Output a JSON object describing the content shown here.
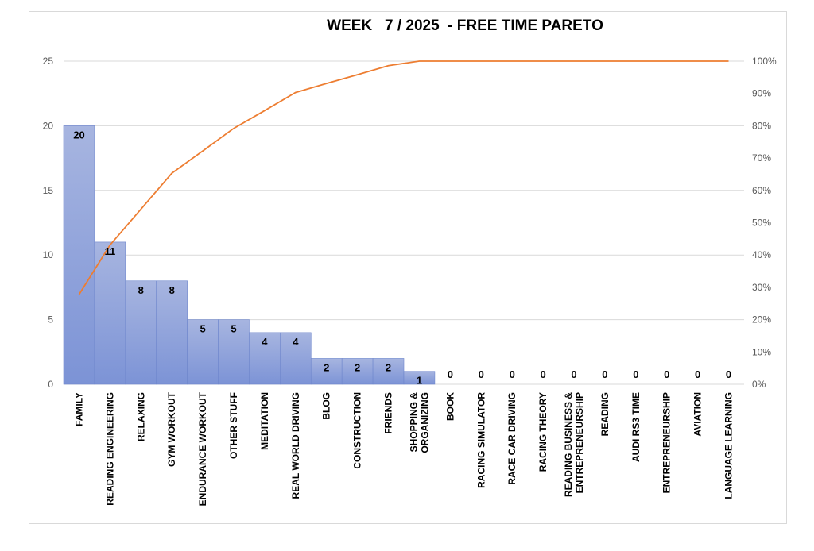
{
  "chart_data": {
    "type": "bar",
    "title": "WEEK   7 / 2025  - FREE TIME PARETO",
    "categories": [
      [
        "FAMILY"
      ],
      [
        "READING ENGINEERING"
      ],
      [
        "RELAXING"
      ],
      [
        "GYM WORKOUT"
      ],
      [
        "ENDURANCE WORKOUT"
      ],
      [
        "OTHER STUFF"
      ],
      [
        "MEDITATION"
      ],
      [
        "REAL WORLD DRIVING"
      ],
      [
        "BLOG"
      ],
      [
        "CONSTRUCTION"
      ],
      [
        "FRIENDS"
      ],
      [
        "SHOPPING &",
        "ORGANIZING"
      ],
      [
        "BOOK"
      ],
      [
        "RACING SIMULATOR"
      ],
      [
        "RACE CAR DRIVING"
      ],
      [
        "RACING THEORY"
      ],
      [
        "READING BUSINESS &",
        "ENTREPRENEURSHIP"
      ],
      [
        "READING"
      ],
      [
        "AUDI RS3 TIME"
      ],
      [
        "ENTREPRENEURSHIP"
      ],
      [
        "AVIATION"
      ],
      [
        "LANGUAGE LEARNING"
      ]
    ],
    "series": [
      {
        "type": "bar",
        "values": [
          20,
          11,
          8,
          8,
          5,
          5,
          4,
          4,
          2,
          2,
          2,
          1,
          0,
          0,
          0,
          0,
          0,
          0,
          0,
          0,
          0,
          0
        ]
      },
      {
        "type": "line",
        "axis": "secondary",
        "values": [
          27.8,
          43.1,
          54.2,
          65.3,
          72.2,
          79.2,
          84.7,
          90.3,
          93.1,
          95.8,
          98.6,
          100,
          100,
          100,
          100,
          100,
          100,
          100,
          100,
          100,
          100,
          100
        ]
      }
    ],
    "y_ticks": [
      "0",
      "5",
      "10",
      "15",
      "20",
      "25"
    ],
    "y2_ticks": [
      "0%",
      "10%",
      "20%",
      "30%",
      "40%",
      "50%",
      "60%",
      "70%",
      "80%",
      "90%",
      "100%"
    ],
    "ylim": [
      0,
      25
    ],
    "y2lim": [
      0,
      100
    ],
    "grid": true,
    "colors": {
      "bar_top": "#a7b5e0",
      "bar_bottom": "#7c93d6",
      "bar_edge": "#6e86cc",
      "line": "#ed7d31",
      "grid": "#d9d9d9"
    }
  }
}
